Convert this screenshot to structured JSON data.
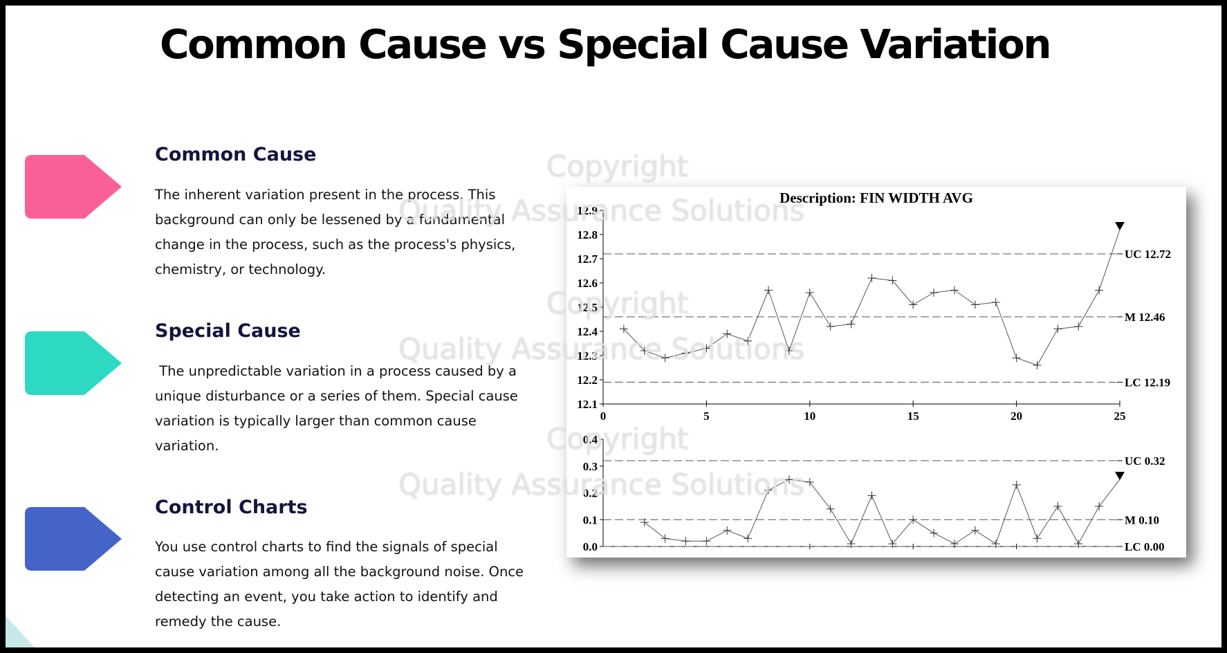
{
  "slide": {
    "title": "Common Cause vs Special Cause Variation"
  },
  "sections": [
    {
      "heading": "Common Cause",
      "body": "The inherent variation present in the process. This background can only be lessened by a fundamental change in the process, such as the process's physics, chemistry, or technology.",
      "color": "#fb5f97"
    },
    {
      "heading": "Special Cause",
      "body": " The unpredictable variation in a process caused by a unique disturbance or a series of them. Special cause variation is typically larger than common cause variation.",
      "color": "#2dd9c3"
    },
    {
      "heading": "Control Charts",
      "body": "You use control charts to find the signals of special cause variation among all the background noise. Once detecting an event, you take action to identify and remedy the cause.",
      "color": "#4564c8"
    }
  ],
  "watermark": {
    "line1": "Copyright",
    "line2": "Quality Assurance Solutions"
  },
  "chart_data": [
    {
      "type": "line",
      "title": "Description: FIN WIDTH AVG",
      "x": [
        1,
        2,
        3,
        4,
        5,
        6,
        7,
        8,
        9,
        10,
        11,
        12,
        13,
        14,
        15,
        16,
        17,
        18,
        19,
        20,
        21,
        22,
        23,
        24,
        25
      ],
      "values": [
        12.41,
        12.32,
        12.29,
        12.31,
        12.33,
        12.39,
        12.36,
        12.57,
        12.32,
        12.56,
        12.42,
        12.43,
        12.62,
        12.61,
        12.51,
        12.56,
        12.57,
        12.51,
        12.52,
        12.29,
        12.26,
        12.41,
        12.42,
        12.57,
        12.82
      ],
      "xlim": [
        0,
        25
      ],
      "ylim": [
        12.1,
        12.9
      ],
      "x_ticks": [
        0,
        5,
        10,
        15,
        20,
        25
      ],
      "y_ticks": [
        12.1,
        12.2,
        12.3,
        12.4,
        12.5,
        12.6,
        12.7,
        12.8,
        12.9
      ],
      "control_lines": [
        {
          "label": "UC 12.72",
          "value": 12.72
        },
        {
          "label": "M 12.46",
          "value": 12.46
        },
        {
          "label": "LC 12.19",
          "value": 12.19
        }
      ],
      "marker_last": "triangle-down",
      "grid": false
    },
    {
      "type": "line",
      "x": [
        2,
        3,
        4,
        5,
        6,
        7,
        8,
        9,
        10,
        11,
        12,
        13,
        14,
        15,
        16,
        17,
        18,
        19,
        20,
        21,
        22,
        23,
        24,
        25
      ],
      "values": [
        0.09,
        0.03,
        0.02,
        0.02,
        0.06,
        0.03,
        0.21,
        0.25,
        0.24,
        0.14,
        0.01,
        0.19,
        0.01,
        0.1,
        0.05,
        0.01,
        0.06,
        0.01,
        0.23,
        0.03,
        0.15,
        0.01,
        0.15,
        0.25
      ],
      "xlim": [
        0,
        25
      ],
      "ylim": [
        0.0,
        0.4
      ],
      "y_ticks": [
        0.0,
        0.1,
        0.2,
        0.3,
        0.4
      ],
      "control_lines": [
        {
          "label": "UC 0.32",
          "value": 0.32
        },
        {
          "label": "M 0.10",
          "value": 0.1
        },
        {
          "label": "LC 0.00",
          "value": 0.0
        }
      ],
      "marker_last": "triangle-down",
      "grid": false
    }
  ]
}
